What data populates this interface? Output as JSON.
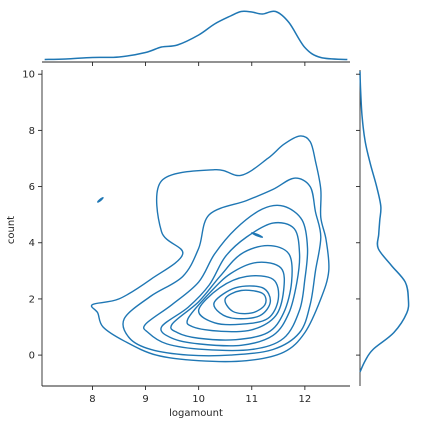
{
  "chart_data": {
    "type": "kde-joint",
    "xlabel": "logamount",
    "ylabel": "count",
    "xlim": [
      7.05,
      12.85
    ],
    "ylim": [
      -1.1,
      10.15
    ],
    "x_ticks": [
      8,
      9,
      10,
      11,
      12
    ],
    "y_ticks": [
      0,
      2,
      4,
      6,
      8,
      10
    ],
    "grid": false,
    "line_color": "#1f77b4",
    "contours": [
      [
        [
          8.0,
          1.8
        ],
        [
          8.5,
          2.0
        ],
        [
          9.1,
          2.7
        ],
        [
          9.7,
          3.6
        ],
        [
          9.3,
          4.4
        ],
        [
          9.3,
          6.2
        ],
        [
          10.3,
          6.6
        ],
        [
          10.8,
          6.4
        ],
        [
          11.3,
          7.0
        ],
        [
          11.6,
          7.5
        ],
        [
          11.9,
          7.8
        ],
        [
          12.1,
          7.6
        ],
        [
          12.2,
          6.9
        ],
        [
          12.3,
          5.9
        ],
        [
          12.3,
          4.9
        ],
        [
          12.4,
          4.1
        ],
        [
          12.45,
          3.0
        ],
        [
          12.3,
          2.0
        ],
        [
          12.0,
          0.8
        ],
        [
          11.6,
          0.1
        ],
        [
          10.9,
          -0.2
        ],
        [
          10.0,
          -0.2
        ],
        [
          9.2,
          0.0
        ],
        [
          8.6,
          0.5
        ],
        [
          8.2,
          1.0
        ],
        [
          8.1,
          1.5
        ]
      ],
      [
        [
          8.6,
          1.3
        ],
        [
          9.1,
          2.1
        ],
        [
          9.7,
          2.8
        ],
        [
          10.0,
          3.8
        ],
        [
          10.2,
          5.0
        ],
        [
          10.9,
          5.5
        ],
        [
          11.4,
          5.9
        ],
        [
          11.8,
          6.3
        ],
        [
          12.1,
          6.0
        ],
        [
          12.2,
          5.1
        ],
        [
          12.3,
          4.2
        ],
        [
          12.2,
          3.0
        ],
        [
          12.1,
          1.8
        ],
        [
          11.9,
          0.8
        ],
        [
          11.4,
          0.2
        ],
        [
          10.6,
          0.0
        ],
        [
          9.8,
          0.0
        ],
        [
          9.1,
          0.2
        ],
        [
          8.7,
          0.6
        ]
      ],
      [
        [
          9.0,
          1.1
        ],
        [
          9.5,
          1.8
        ],
        [
          10.0,
          2.6
        ],
        [
          10.3,
          3.6
        ],
        [
          10.7,
          4.5
        ],
        [
          11.2,
          5.2
        ],
        [
          11.6,
          5.3
        ],
        [
          11.95,
          4.8
        ],
        [
          12.05,
          3.8
        ],
        [
          12.0,
          2.7
        ],
        [
          11.9,
          1.6
        ],
        [
          11.6,
          0.6
        ],
        [
          11.0,
          0.2
        ],
        [
          10.1,
          0.2
        ],
        [
          9.4,
          0.4
        ],
        [
          9.05,
          0.8
        ]
      ],
      [
        [
          9.3,
          1.0
        ],
        [
          9.8,
          1.7
        ],
        [
          10.2,
          2.5
        ],
        [
          10.5,
          3.5
        ],
        [
          10.9,
          4.2
        ],
        [
          11.4,
          4.7
        ],
        [
          11.8,
          4.5
        ],
        [
          11.9,
          3.6
        ],
        [
          11.85,
          2.6
        ],
        [
          11.7,
          1.5
        ],
        [
          11.4,
          0.7
        ],
        [
          10.8,
          0.35
        ],
        [
          10.0,
          0.4
        ],
        [
          9.5,
          0.6
        ]
      ],
      [
        [
          9.5,
          1.1
        ],
        [
          10.0,
          1.9
        ],
        [
          10.4,
          2.8
        ],
        [
          10.8,
          3.6
        ],
        [
          11.3,
          3.9
        ],
        [
          11.7,
          3.6
        ],
        [
          11.75,
          2.6
        ],
        [
          11.6,
          1.5
        ],
        [
          11.3,
          0.8
        ],
        [
          10.7,
          0.55
        ],
        [
          10.0,
          0.6
        ],
        [
          9.6,
          0.8
        ]
      ],
      [
        [
          9.8,
          1.3
        ],
        [
          10.2,
          2.2
        ],
        [
          10.6,
          2.9
        ],
        [
          11.1,
          3.3
        ],
        [
          11.55,
          3.1
        ],
        [
          11.6,
          2.3
        ],
        [
          11.45,
          1.4
        ],
        [
          11.0,
          0.9
        ],
        [
          10.4,
          0.85
        ],
        [
          9.9,
          1.0
        ]
      ],
      [
        [
          10.0,
          1.6
        ],
        [
          10.4,
          2.4
        ],
        [
          10.9,
          2.8
        ],
        [
          11.4,
          2.7
        ],
        [
          11.5,
          2.0
        ],
        [
          11.3,
          1.3
        ],
        [
          10.8,
          1.1
        ],
        [
          10.3,
          1.15
        ]
      ],
      [
        [
          10.3,
          1.9
        ],
        [
          10.7,
          2.4
        ],
        [
          11.2,
          2.4
        ],
        [
          11.35,
          1.9
        ],
        [
          11.15,
          1.4
        ],
        [
          10.7,
          1.3
        ],
        [
          10.4,
          1.5
        ]
      ],
      [
        [
          10.5,
          2.0
        ],
        [
          10.8,
          2.3
        ],
        [
          11.2,
          2.2
        ],
        [
          11.25,
          1.8
        ],
        [
          11.0,
          1.5
        ],
        [
          10.65,
          1.55
        ]
      ],
      [
        [
          11.0,
          4.35
        ],
        [
          11.1,
          4.3
        ],
        [
          11.2,
          4.2
        ],
        [
          11.1,
          4.25
        ]
      ],
      [
        [
          8.1,
          5.45
        ],
        [
          8.15,
          5.55
        ],
        [
          8.2,
          5.6
        ],
        [
          8.15,
          5.5
        ]
      ]
    ],
    "x_marginal": {
      "x": [
        7.1,
        7.5,
        8.0,
        8.5,
        9.0,
        9.3,
        9.6,
        10.0,
        10.3,
        10.6,
        10.8,
        11.0,
        11.2,
        11.45,
        11.7,
        12.0,
        12.3,
        12.8
      ],
      "density": [
        0.01,
        0.02,
        0.05,
        0.06,
        0.15,
        0.26,
        0.3,
        0.5,
        0.72,
        0.88,
        0.97,
        0.96,
        0.92,
        0.97,
        0.75,
        0.25,
        0.05,
        0.01
      ]
    },
    "y_marginal": {
      "y": [
        -0.6,
        -0.2,
        0.2,
        0.8,
        1.5,
        2.0,
        2.6,
        3.2,
        3.8,
        4.3,
        4.8,
        5.3,
        6.0,
        6.8,
        7.6,
        8.5,
        9.5,
        10.1
      ],
      "density": [
        0.0,
        0.1,
        0.25,
        0.65,
        0.9,
        0.93,
        0.87,
        0.6,
        0.35,
        0.36,
        0.38,
        0.4,
        0.32,
        0.2,
        0.1,
        0.04,
        0.01,
        0.0
      ]
    }
  }
}
